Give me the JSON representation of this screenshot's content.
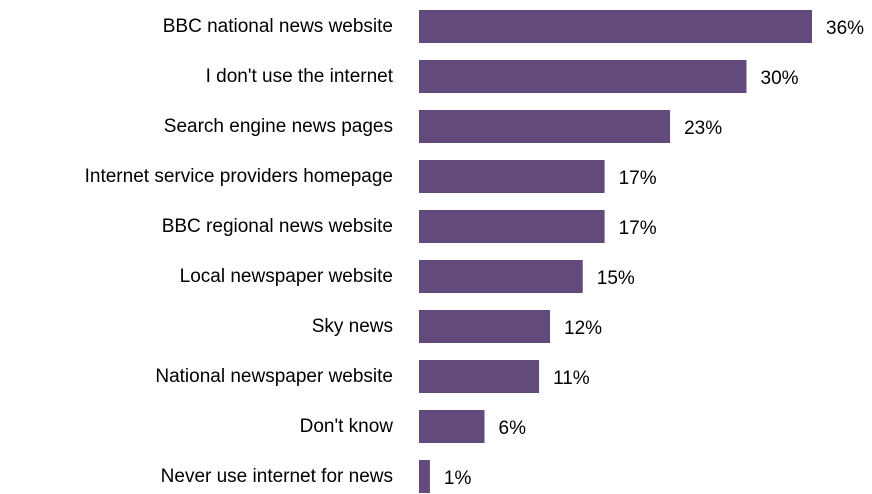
{
  "chart_data": {
    "type": "bar",
    "orientation": "horizontal",
    "title": "",
    "xlabel": "",
    "ylabel": "",
    "xlim": [
      0,
      36
    ],
    "grid": false,
    "legend": "none",
    "bar_color": "#624a7c",
    "categories": [
      "BBC national news website",
      "I don't use the internet",
      "Search engine news pages",
      "Internet service providers homepage",
      "BBC regional news website",
      "Local newspaper website",
      "Sky news",
      "National newspaper website",
      "Don't know",
      "Never use internet for news"
    ],
    "values": [
      36,
      30,
      23,
      17,
      17,
      15,
      12,
      11,
      6,
      1
    ],
    "value_labels": [
      "36%",
      "30%",
      "23%",
      "17%",
      "17%",
      "15%",
      "12%",
      "11%",
      "6%",
      "1%"
    ]
  }
}
